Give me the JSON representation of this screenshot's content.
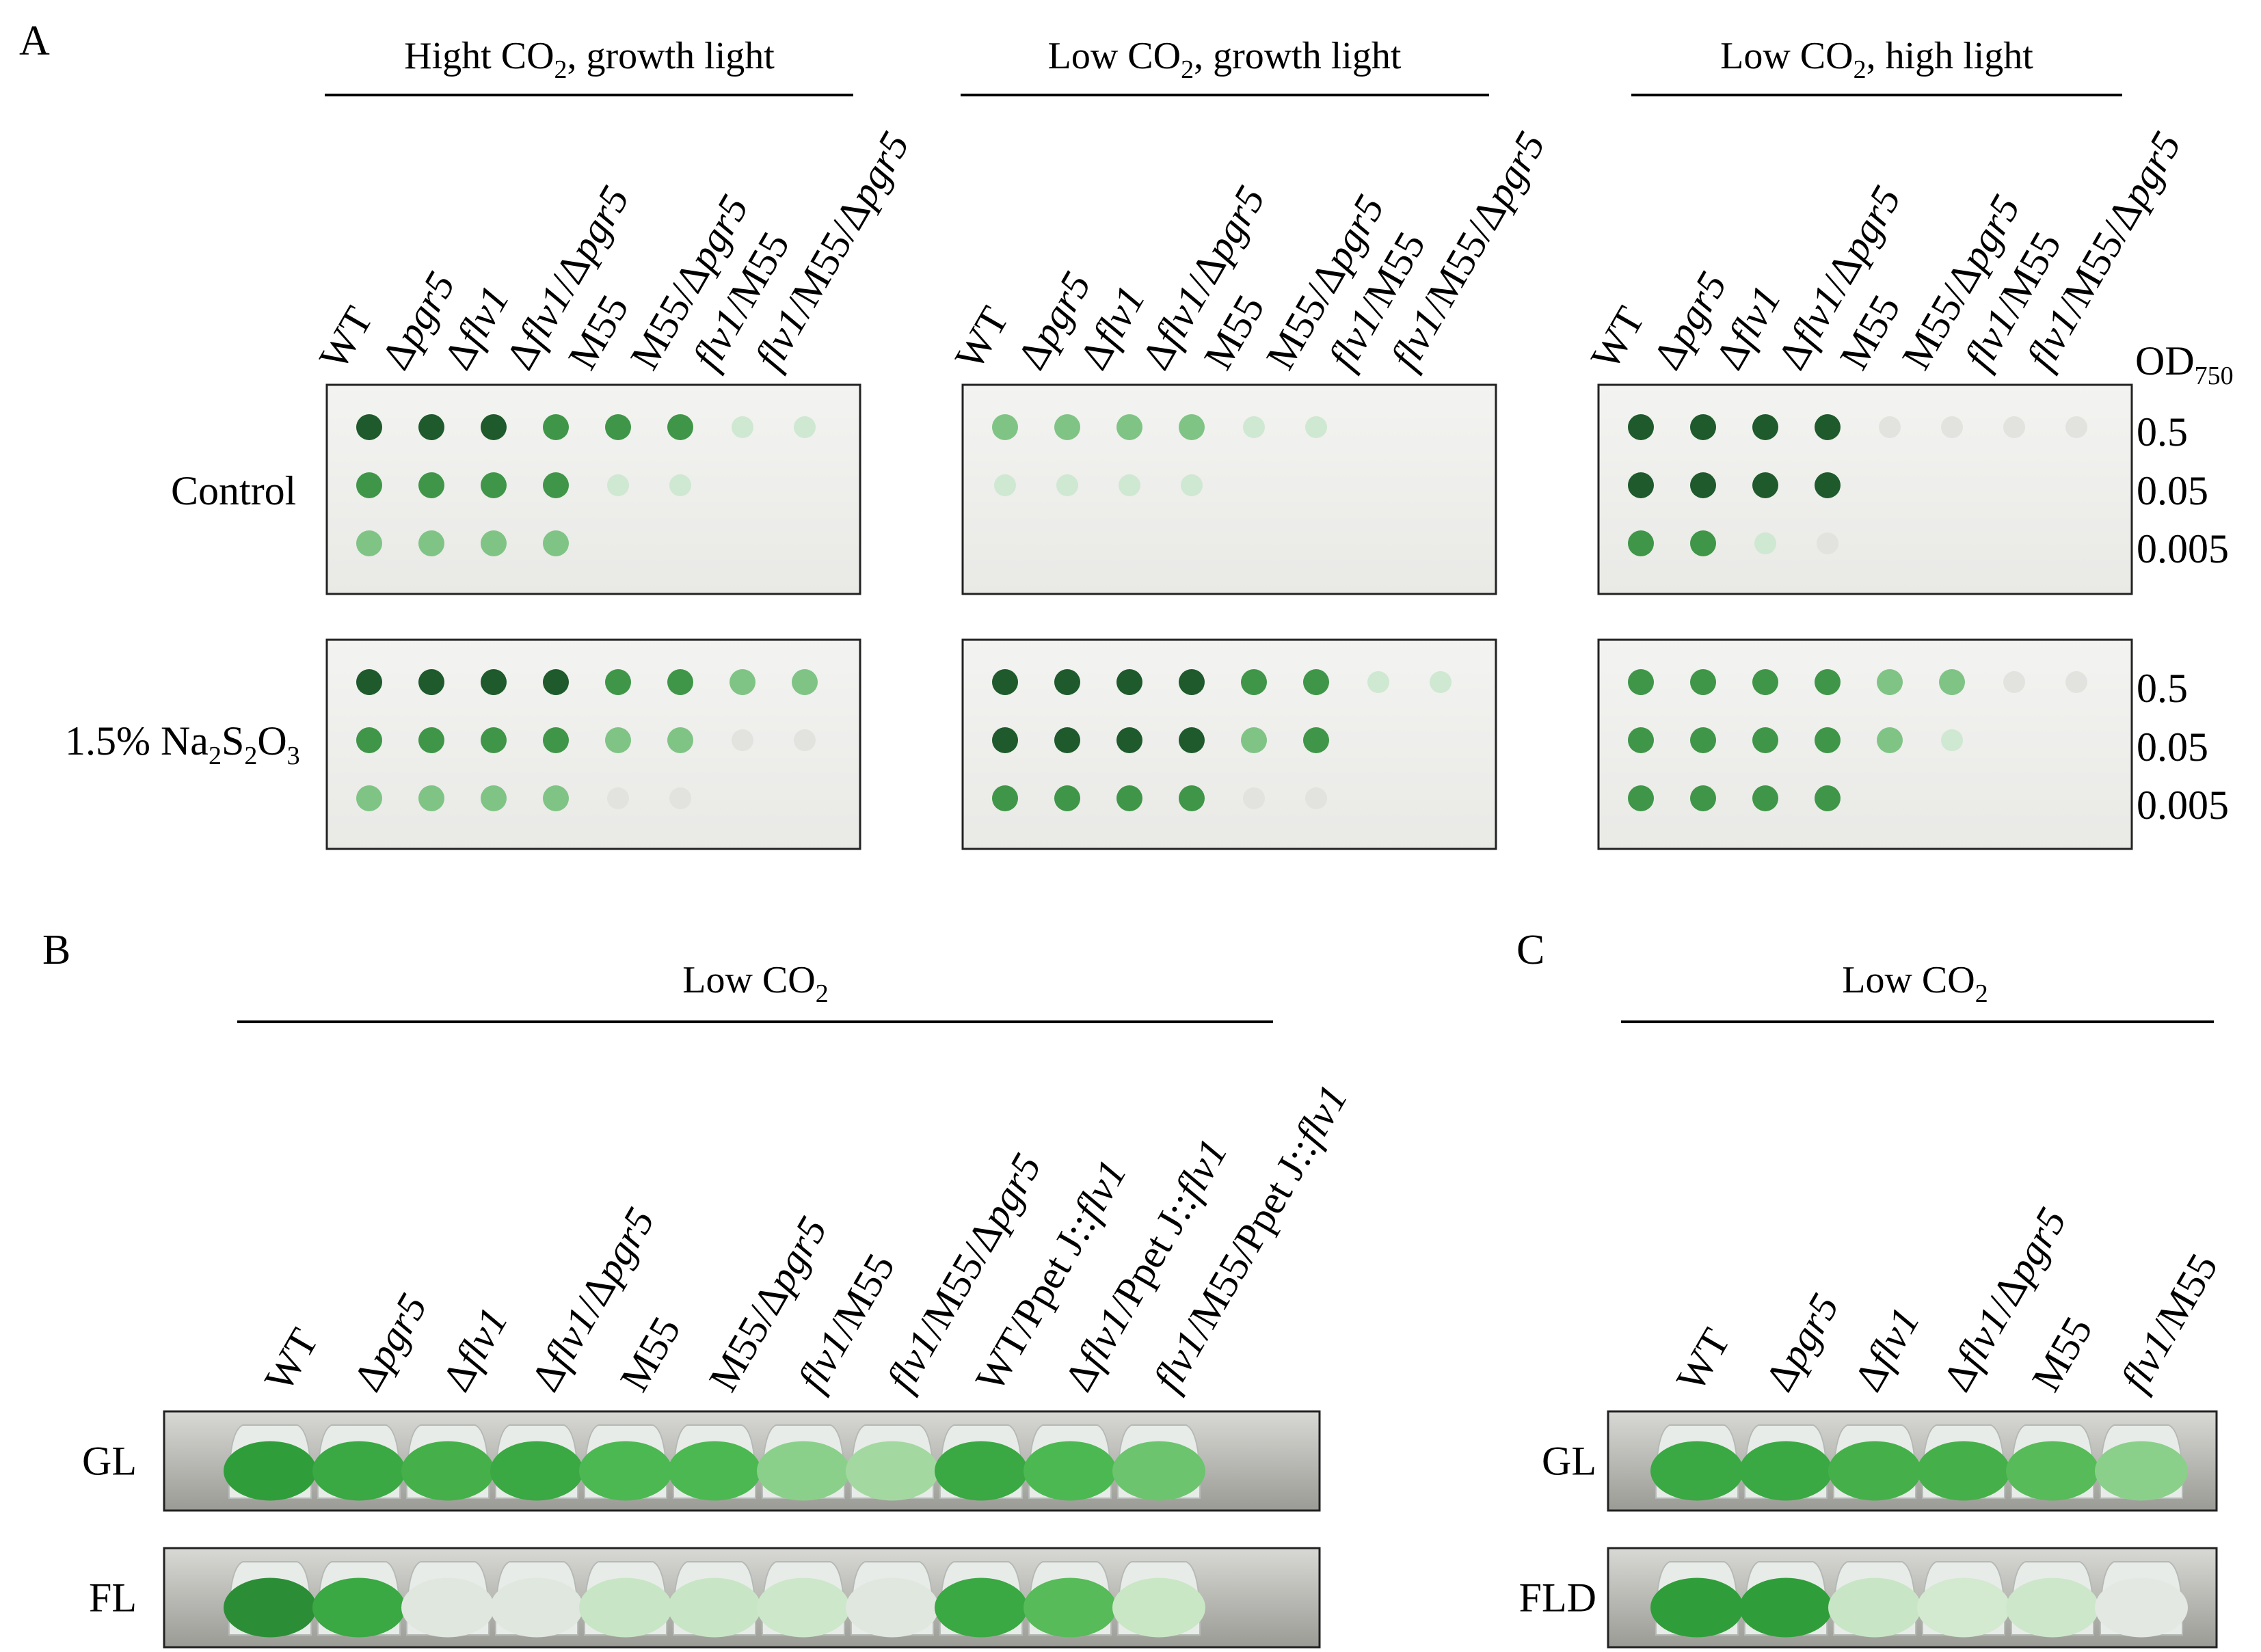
{
  "panels": {
    "A": {
      "letter": "A",
      "conditions": [
        {
          "main": "Hight CO",
          "sub": "2",
          "rest": ", growth light"
        },
        {
          "main": "Low CO",
          "sub": "2",
          "rest": ", growth light"
        },
        {
          "main": "Low CO",
          "sub": "2",
          "rest": ", high light"
        }
      ],
      "strains": [
        [
          {
            "t": "WT",
            "i": false
          }
        ],
        [
          {
            "t": "Δ",
            "i": false
          },
          {
            "t": "pgr5",
            "i": true
          }
        ],
        [
          {
            "t": "Δ",
            "i": false
          },
          {
            "t": "flv1",
            "i": true
          }
        ],
        [
          {
            "t": "Δ",
            "i": false
          },
          {
            "t": "flv1",
            "i": true
          },
          {
            "t": "/Δ",
            "i": false
          },
          {
            "t": "pgr5",
            "i": true
          }
        ],
        [
          {
            "t": "M55",
            "i": false
          }
        ],
        [
          {
            "t": "M55/Δ",
            "i": false
          },
          {
            "t": "pgr5",
            "i": true
          }
        ],
        [
          {
            "t": "flv1",
            "i": true
          },
          {
            "t": "/M55",
            "i": false
          }
        ],
        [
          {
            "t": "flv1",
            "i": true
          },
          {
            "t": "/M55/Δ",
            "i": false
          },
          {
            "t": "pgr5",
            "i": true
          }
        ]
      ],
      "od_header": {
        "main": "OD",
        "sub": "750"
      },
      "od_values": [
        "0.5",
        "0.05",
        "0.005"
      ],
      "treatments": [
        {
          "label": "Control"
        },
        {
          "label_main": "1.5% Na",
          "sub1": "2",
          "mid": "S",
          "sub2": "2",
          "mid2": "O",
          "sub3": "3"
        }
      ],
      "growth_colors": {
        "dark": "#1e5a2c",
        "medium": "#3f9648",
        "light": "#7fc485",
        "faint": "#cfe8d1",
        "trace": "#e2e2df"
      }
    },
    "B": {
      "letter": "B",
      "condition": {
        "main": "Low CO",
        "sub": "2"
      },
      "strains": [
        [
          {
            "t": "WT",
            "i": false
          }
        ],
        [
          {
            "t": "Δ",
            "i": false
          },
          {
            "t": "pgr5",
            "i": true
          }
        ],
        [
          {
            "t": "Δ",
            "i": false
          },
          {
            "t": "flv1",
            "i": true
          }
        ],
        [
          {
            "t": "Δ",
            "i": false
          },
          {
            "t": "flv1",
            "i": true
          },
          {
            "t": "/Δ",
            "i": false
          },
          {
            "t": "pgr5",
            "i": true
          }
        ],
        [
          {
            "t": "M55",
            "i": false
          }
        ],
        [
          {
            "t": "M55/Δ",
            "i": false
          },
          {
            "t": "pgr5",
            "i": true
          }
        ],
        [
          {
            "t": "flv1",
            "i": true
          },
          {
            "t": "/M55",
            "i": false
          }
        ],
        [
          {
            "t": "flv1",
            "i": true
          },
          {
            "t": "/M55/Δ",
            "i": false
          },
          {
            "t": "pgr5",
            "i": true
          }
        ],
        [
          {
            "t": "WT/Ppet J::",
            "i": false
          },
          {
            "t": "flv1",
            "i": true
          }
        ],
        [
          {
            "t": "Δ",
            "i": false
          },
          {
            "t": "flv1",
            "i": true
          },
          {
            "t": "/Ppet J::",
            "i": false
          },
          {
            "t": "flv1",
            "i": true
          }
        ],
        [
          {
            "t": "flv1",
            "i": true
          },
          {
            "t": "/M55/Ppet J::",
            "i": false
          },
          {
            "t": "flv1",
            "i": true
          }
        ]
      ],
      "rows": [
        "GL",
        "FL"
      ]
    },
    "C": {
      "letter": "C",
      "condition": {
        "main": "Low CO",
        "sub": "2"
      },
      "strains": [
        [
          {
            "t": "WT",
            "i": false
          }
        ],
        [
          {
            "t": "Δ",
            "i": false
          },
          {
            "t": "pgr5",
            "i": true
          }
        ],
        [
          {
            "t": "Δ",
            "i": false
          },
          {
            "t": "flv1",
            "i": true
          }
        ],
        [
          {
            "t": "Δ",
            "i": false
          },
          {
            "t": "flv1",
            "i": true
          },
          {
            "t": "/Δ",
            "i": false
          },
          {
            "t": "pgr5",
            "i": true
          }
        ],
        [
          {
            "t": "M55",
            "i": false
          }
        ],
        [
          {
            "t": "flv1",
            "i": true
          },
          {
            "t": "/M55",
            "i": false
          }
        ]
      ],
      "rows": [
        "GL",
        "FLD"
      ]
    }
  }
}
